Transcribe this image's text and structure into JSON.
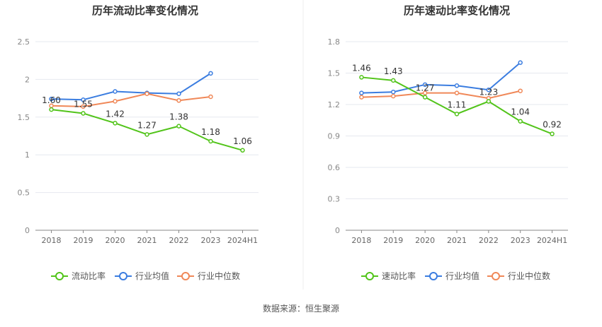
{
  "source_label": "数据来源：恒生聚源",
  "chart_data": [
    {
      "type": "line",
      "title": "历年流动比率变化情况",
      "categories": [
        "2018",
        "2019",
        "2020",
        "2021",
        "2022",
        "2023",
        "2024H1"
      ],
      "ylim": [
        0,
        2.5
      ],
      "yticks": [
        "0",
        "0.5",
        "1",
        "1.5",
        "2",
        "2.5"
      ],
      "grid": true,
      "legend_position": "bottom",
      "series": [
        {
          "name": "流动比率",
          "color": "#52c41a",
          "labeled": true,
          "values": [
            1.6,
            1.55,
            1.42,
            1.27,
            1.38,
            1.18,
            1.06
          ],
          "labels": [
            "1.60",
            "1.55",
            "1.42",
            "1.27",
            "1.38",
            "1.18",
            "1.06"
          ]
        },
        {
          "name": "行业均值",
          "color": "#3b7de0",
          "labeled": false,
          "values": [
            1.74,
            1.73,
            1.84,
            1.82,
            1.81,
            2.08,
            null
          ]
        },
        {
          "name": "行业中位数",
          "color": "#f08858",
          "labeled": false,
          "values": [
            1.65,
            1.64,
            1.71,
            1.81,
            1.72,
            1.77,
            null
          ]
        }
      ]
    },
    {
      "type": "line",
      "title": "历年速动比率变化情况",
      "categories": [
        "2018",
        "2019",
        "2020",
        "2021",
        "2022",
        "2023",
        "2024H1"
      ],
      "ylim": [
        0,
        1.8
      ],
      "yticks": [
        "0",
        "0.3",
        "0.6",
        "0.9",
        "1.2",
        "1.5",
        "1.8"
      ],
      "grid": true,
      "legend_position": "bottom",
      "series": [
        {
          "name": "速动比率",
          "color": "#52c41a",
          "labeled": true,
          "values": [
            1.46,
            1.43,
            1.27,
            1.11,
            1.23,
            1.04,
            0.92
          ],
          "labels": [
            "1.46",
            "1.43",
            "1.27",
            "1.11",
            "1.23",
            "1.04",
            "0.92"
          ]
        },
        {
          "name": "行业均值",
          "color": "#3b7de0",
          "labeled": false,
          "values": [
            1.31,
            1.32,
            1.39,
            1.38,
            1.34,
            1.6,
            null
          ]
        },
        {
          "name": "行业中位数",
          "color": "#f08858",
          "labeled": false,
          "values": [
            1.27,
            1.28,
            1.31,
            1.31,
            1.26,
            1.33,
            null
          ]
        }
      ]
    }
  ]
}
